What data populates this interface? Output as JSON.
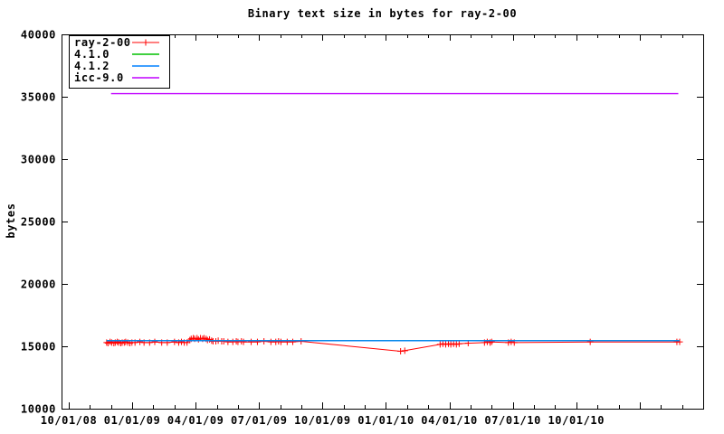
{
  "chart_data": {
    "type": "line",
    "title": "Binary text size in bytes for ray-2-00",
    "xlabel": "",
    "ylabel": "bytes",
    "ylim": [
      10000,
      40000
    ],
    "ytick_step": 5000,
    "grid": false,
    "legend": {
      "position": "top-left",
      "border": true
    },
    "x_axis": {
      "start_date": "2008-09-21",
      "end_date": "2011-04-01",
      "major_tick_every_months": 3,
      "minor_tick_every_months": 1
    },
    "xticks": [
      {
        "date": "2008-10-01",
        "label": "10/01/08"
      },
      {
        "date": "2009-01-01",
        "label": "01/01/09"
      },
      {
        "date": "2009-04-01",
        "label": "04/01/09"
      },
      {
        "date": "2009-07-01",
        "label": "07/01/09"
      },
      {
        "date": "2009-10-01",
        "label": "10/01/09"
      },
      {
        "date": "2010-01-01",
        "label": "01/01/10"
      },
      {
        "date": "2010-04-01",
        "label": "04/01/10"
      },
      {
        "date": "2010-07-01",
        "label": "07/01/10"
      },
      {
        "date": "2010-10-01",
        "label": "10/01/10"
      }
    ],
    "series": [
      {
        "name": "ray-2-00",
        "color": "#ff0000",
        "style": "linespoints",
        "marker": "plus",
        "line_width": 1,
        "points": [
          [
            "2008-11-25",
            15300
          ],
          [
            "2008-11-27",
            15250
          ],
          [
            "2008-11-30",
            15350
          ],
          [
            "2008-12-02",
            15300
          ],
          [
            "2008-12-05",
            15250
          ],
          [
            "2008-12-07",
            15300
          ],
          [
            "2008-12-10",
            15350
          ],
          [
            "2008-12-12",
            15300
          ],
          [
            "2008-12-15",
            15250
          ],
          [
            "2008-12-17",
            15300
          ],
          [
            "2008-12-20",
            15300
          ],
          [
            "2008-12-22",
            15350
          ],
          [
            "2008-12-25",
            15300
          ],
          [
            "2008-12-28",
            15250
          ],
          [
            "2008-12-31",
            15300
          ],
          [
            "2009-01-05",
            15300
          ],
          [
            "2009-01-12",
            15350
          ],
          [
            "2009-01-18",
            15300
          ],
          [
            "2009-01-26",
            15300
          ],
          [
            "2009-02-03",
            15350
          ],
          [
            "2009-02-13",
            15300
          ],
          [
            "2009-02-21",
            15300
          ],
          [
            "2009-03-01",
            15350
          ],
          [
            "2009-03-07",
            15300
          ],
          [
            "2009-03-11",
            15350
          ],
          [
            "2009-03-15",
            15300
          ],
          [
            "2009-03-19",
            15300
          ],
          [
            "2009-03-23",
            15500
          ],
          [
            "2009-03-25",
            15600
          ],
          [
            "2009-03-28",
            15650
          ],
          [
            "2009-03-30",
            15600
          ],
          [
            "2009-04-03",
            15650
          ],
          [
            "2009-04-05",
            15550
          ],
          [
            "2009-04-08",
            15650
          ],
          [
            "2009-04-11",
            15600
          ],
          [
            "2009-04-13",
            15650
          ],
          [
            "2009-04-16",
            15600
          ],
          [
            "2009-04-18",
            15500
          ],
          [
            "2009-04-21",
            15550
          ],
          [
            "2009-04-24",
            15450
          ],
          [
            "2009-04-26",
            15400
          ],
          [
            "2009-04-30",
            15400
          ],
          [
            "2009-05-03",
            15450
          ],
          [
            "2009-05-08",
            15400
          ],
          [
            "2009-05-11",
            15400
          ],
          [
            "2009-05-17",
            15350
          ],
          [
            "2009-05-24",
            15350
          ],
          [
            "2009-05-29",
            15400
          ],
          [
            "2009-06-01",
            15350
          ],
          [
            "2009-06-06",
            15400
          ],
          [
            "2009-06-09",
            15350
          ],
          [
            "2009-06-20",
            15350
          ],
          [
            "2009-06-29",
            15350
          ],
          [
            "2009-07-08",
            15400
          ],
          [
            "2009-07-18",
            15350
          ],
          [
            "2009-07-25",
            15350
          ],
          [
            "2009-07-29",
            15400
          ],
          [
            "2009-08-02",
            15350
          ],
          [
            "2009-08-11",
            15350
          ],
          [
            "2009-08-19",
            15350
          ],
          [
            "2009-08-31",
            15400
          ],
          [
            "2010-01-22",
            14600
          ],
          [
            "2010-01-28",
            14650
          ],
          [
            "2010-03-18",
            15150
          ],
          [
            "2010-03-22",
            15200
          ],
          [
            "2010-03-26",
            15150
          ],
          [
            "2010-03-30",
            15200
          ],
          [
            "2010-04-03",
            15150
          ],
          [
            "2010-04-07",
            15200
          ],
          [
            "2010-04-11",
            15150
          ],
          [
            "2010-04-15",
            15200
          ],
          [
            "2010-04-28",
            15250
          ],
          [
            "2010-05-21",
            15300
          ],
          [
            "2010-05-25",
            15350
          ],
          [
            "2010-05-29",
            15300
          ],
          [
            "2010-06-01",
            15350
          ],
          [
            "2010-06-25",
            15300
          ],
          [
            "2010-06-29",
            15350
          ],
          [
            "2010-07-03",
            15300
          ],
          [
            "2010-10-21",
            15350
          ],
          [
            "2011-02-24",
            15350
          ],
          [
            "2011-02-28",
            15350
          ]
        ]
      },
      {
        "name": "4.1.0",
        "color": "#00c000",
        "style": "line",
        "marker": "none",
        "line_width": 1.4,
        "points": [
          [
            "2008-11-25",
            15450
          ],
          [
            "2011-02-28",
            15450
          ]
        ]
      },
      {
        "name": "4.1.2",
        "color": "#0080ff",
        "style": "line",
        "marker": "none",
        "line_width": 1.4,
        "points": [
          [
            "2008-11-25",
            15450
          ],
          [
            "2011-02-28",
            15450
          ]
        ]
      },
      {
        "name": "icc-9.0",
        "color": "#c000ff",
        "style": "line",
        "marker": "none",
        "line_width": 1.4,
        "points": [
          [
            "2008-12-01",
            35250
          ],
          [
            "2011-02-26",
            35250
          ]
        ]
      }
    ]
  }
}
